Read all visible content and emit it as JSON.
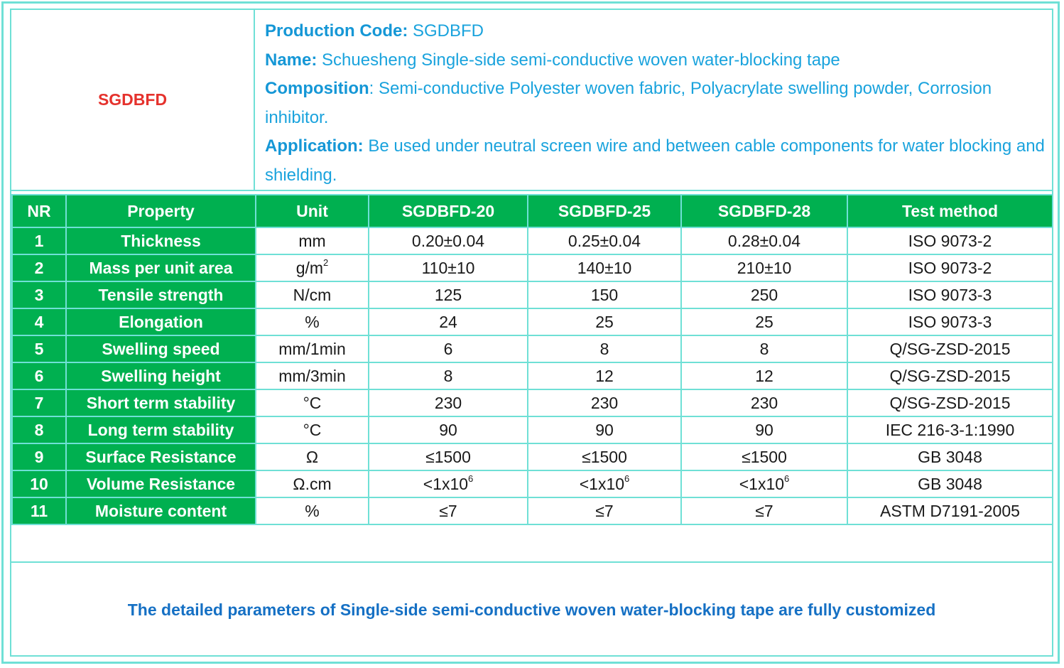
{
  "product": {
    "code": "SGDBFD",
    "production_code_label": "Production Code:",
    "production_code_value": " SGDBFD",
    "name_label": "Name:",
    "name_value": " Schuesheng Single-side semi-conductive woven water-blocking tape",
    "composition_label": "Composition",
    "composition_value": ": Semi-conductive Polyester woven fabric, Polyacrylate swelling powder, Corrosion inhibitor.",
    "application_label": "Application:",
    "application_value": " Be used under neutral screen wire and between cable components for water blocking and shielding."
  },
  "table": {
    "headers": [
      "NR",
      "Property",
      "Unit",
      "SGDBFD-20",
      "SGDBFD-25",
      "SGDBFD-28",
      "Test method"
    ],
    "rows": [
      {
        "nr": "1",
        "property": "Thickness",
        "unit": "mm",
        "v20": "0.20±0.04",
        "v25": "0.25±0.04",
        "v28": "0.28±0.04",
        "method": "ISO 9073-2"
      },
      {
        "nr": "2",
        "property": "Mass per unit area",
        "unit": "g/m",
        "unit_sup": "2",
        "v20": "110±10",
        "v25": "140±10",
        "v28": "210±10",
        "method": "ISO 9073-2"
      },
      {
        "nr": "3",
        "property": "Tensile strength",
        "unit": "N/cm",
        "v20": "125",
        "v25": "150",
        "v28": "250",
        "method": "ISO 9073-3"
      },
      {
        "nr": "4",
        "property": "Elongation",
        "unit": "%",
        "v20": "24",
        "v25": "25",
        "v28": "25",
        "method": "ISO 9073-3"
      },
      {
        "nr": "5",
        "property": "Swelling speed",
        "unit": "mm/1min",
        "v20": "6",
        "v25": "8",
        "v28": "8",
        "method": "Q/SG-ZSD-2015"
      },
      {
        "nr": "6",
        "property": "Swelling height",
        "unit": "mm/3min",
        "v20": "8",
        "v25": "12",
        "v28": "12",
        "method": "Q/SG-ZSD-2015"
      },
      {
        "nr": "7",
        "property": "Short term stability",
        "unit": "°C",
        "v20": "230",
        "v25": "230",
        "v28": "230",
        "method": "Q/SG-ZSD-2015"
      },
      {
        "nr": "8",
        "property": "Long term stability",
        "unit": "°C",
        "v20": "90",
        "v25": "90",
        "v28": "90",
        "method": "IEC 216-3-1:1990"
      },
      {
        "nr": "9",
        "property": "Surface Resistance",
        "unit": "Ω",
        "v20": "≤1500",
        "v25": "≤1500",
        "v28": "≤1500",
        "method": "GB 3048"
      },
      {
        "nr": "10",
        "property": "Volume Resistance",
        "unit": "Ω.cm",
        "v20": "<1x10",
        "v20_sup": "6",
        "v25": "<1x10",
        "v25_sup": "6",
        "v28": "<1x10",
        "v28_sup": "6",
        "method": "GB 3048"
      },
      {
        "nr": "11",
        "property": "Moisture content",
        "unit": "%",
        "v20": "≤7",
        "v25": "≤7",
        "v28": "≤7",
        "method": "ASTM D7191-2005"
      }
    ]
  },
  "footer": {
    "note": "The detailed parameters of Single-side semi-conductive woven water-blocking tape are fully customized"
  },
  "colors": {
    "border": "#6fe0d6",
    "header_green": "#00b050",
    "code_red": "#e5322d",
    "desc_blue": "#1aa3dd",
    "footer_blue": "#1570c4"
  }
}
